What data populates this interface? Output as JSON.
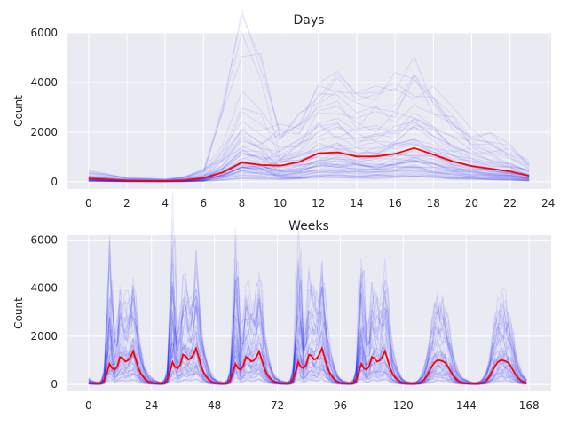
{
  "colors": {
    "background": "#eaeaf2",
    "grid": "#ffffff",
    "trace": "#0000ff",
    "mean": "#ff0000",
    "text": "#262626"
  },
  "chart_data": [
    {
      "type": "line",
      "title": "Days",
      "xlabel": "",
      "ylabel": "Count",
      "xlim": [
        -1.15,
        24.15
      ],
      "ylim": [
        -290,
        6000
      ],
      "xticks": [
        0,
        2,
        4,
        6,
        8,
        10,
        12,
        14,
        16,
        18,
        20,
        22,
        24
      ],
      "yticks": [
        0,
        2000,
        4000,
        6000
      ],
      "grid": true,
      "legend": "none",
      "background_traces": "many semi-transparent blue lines (one per individual day)",
      "series": [
        {
          "role": "mean",
          "x": [
            0,
            1,
            2,
            3,
            4,
            5,
            6,
            7,
            8,
            9,
            10,
            11,
            12,
            13,
            14,
            15,
            16,
            17,
            18,
            19,
            20,
            21,
            22,
            23
          ],
          "values": [
            130,
            90,
            50,
            40,
            30,
            60,
            150,
            380,
            780,
            680,
            650,
            800,
            1150,
            1190,
            1020,
            1020,
            1130,
            1360,
            1100,
            830,
            640,
            530,
            420,
            240
          ]
        }
      ]
    },
    {
      "type": "line",
      "title": "Weeks",
      "xlabel": "",
      "ylabel": "Count",
      "xlim": [
        -8.4,
        176.4
      ],
      "ylim": [
        -290,
        6200
      ],
      "xticks": [
        0,
        24,
        48,
        72,
        96,
        120,
        144,
        168
      ],
      "yticks": [
        0,
        2000,
        4000,
        6000
      ],
      "grid": true,
      "legend": "none",
      "background_traces": "many semi-transparent blue lines (one per individual week)",
      "series": [
        {
          "role": "mean",
          "x_description": "hours 0–167",
          "pattern": "5 weekdays with peaks ~1000–1500 at morning (~08h) and evening (~17h), 2 weekend days with single broad peak ~1000"
        }
      ]
    }
  ]
}
